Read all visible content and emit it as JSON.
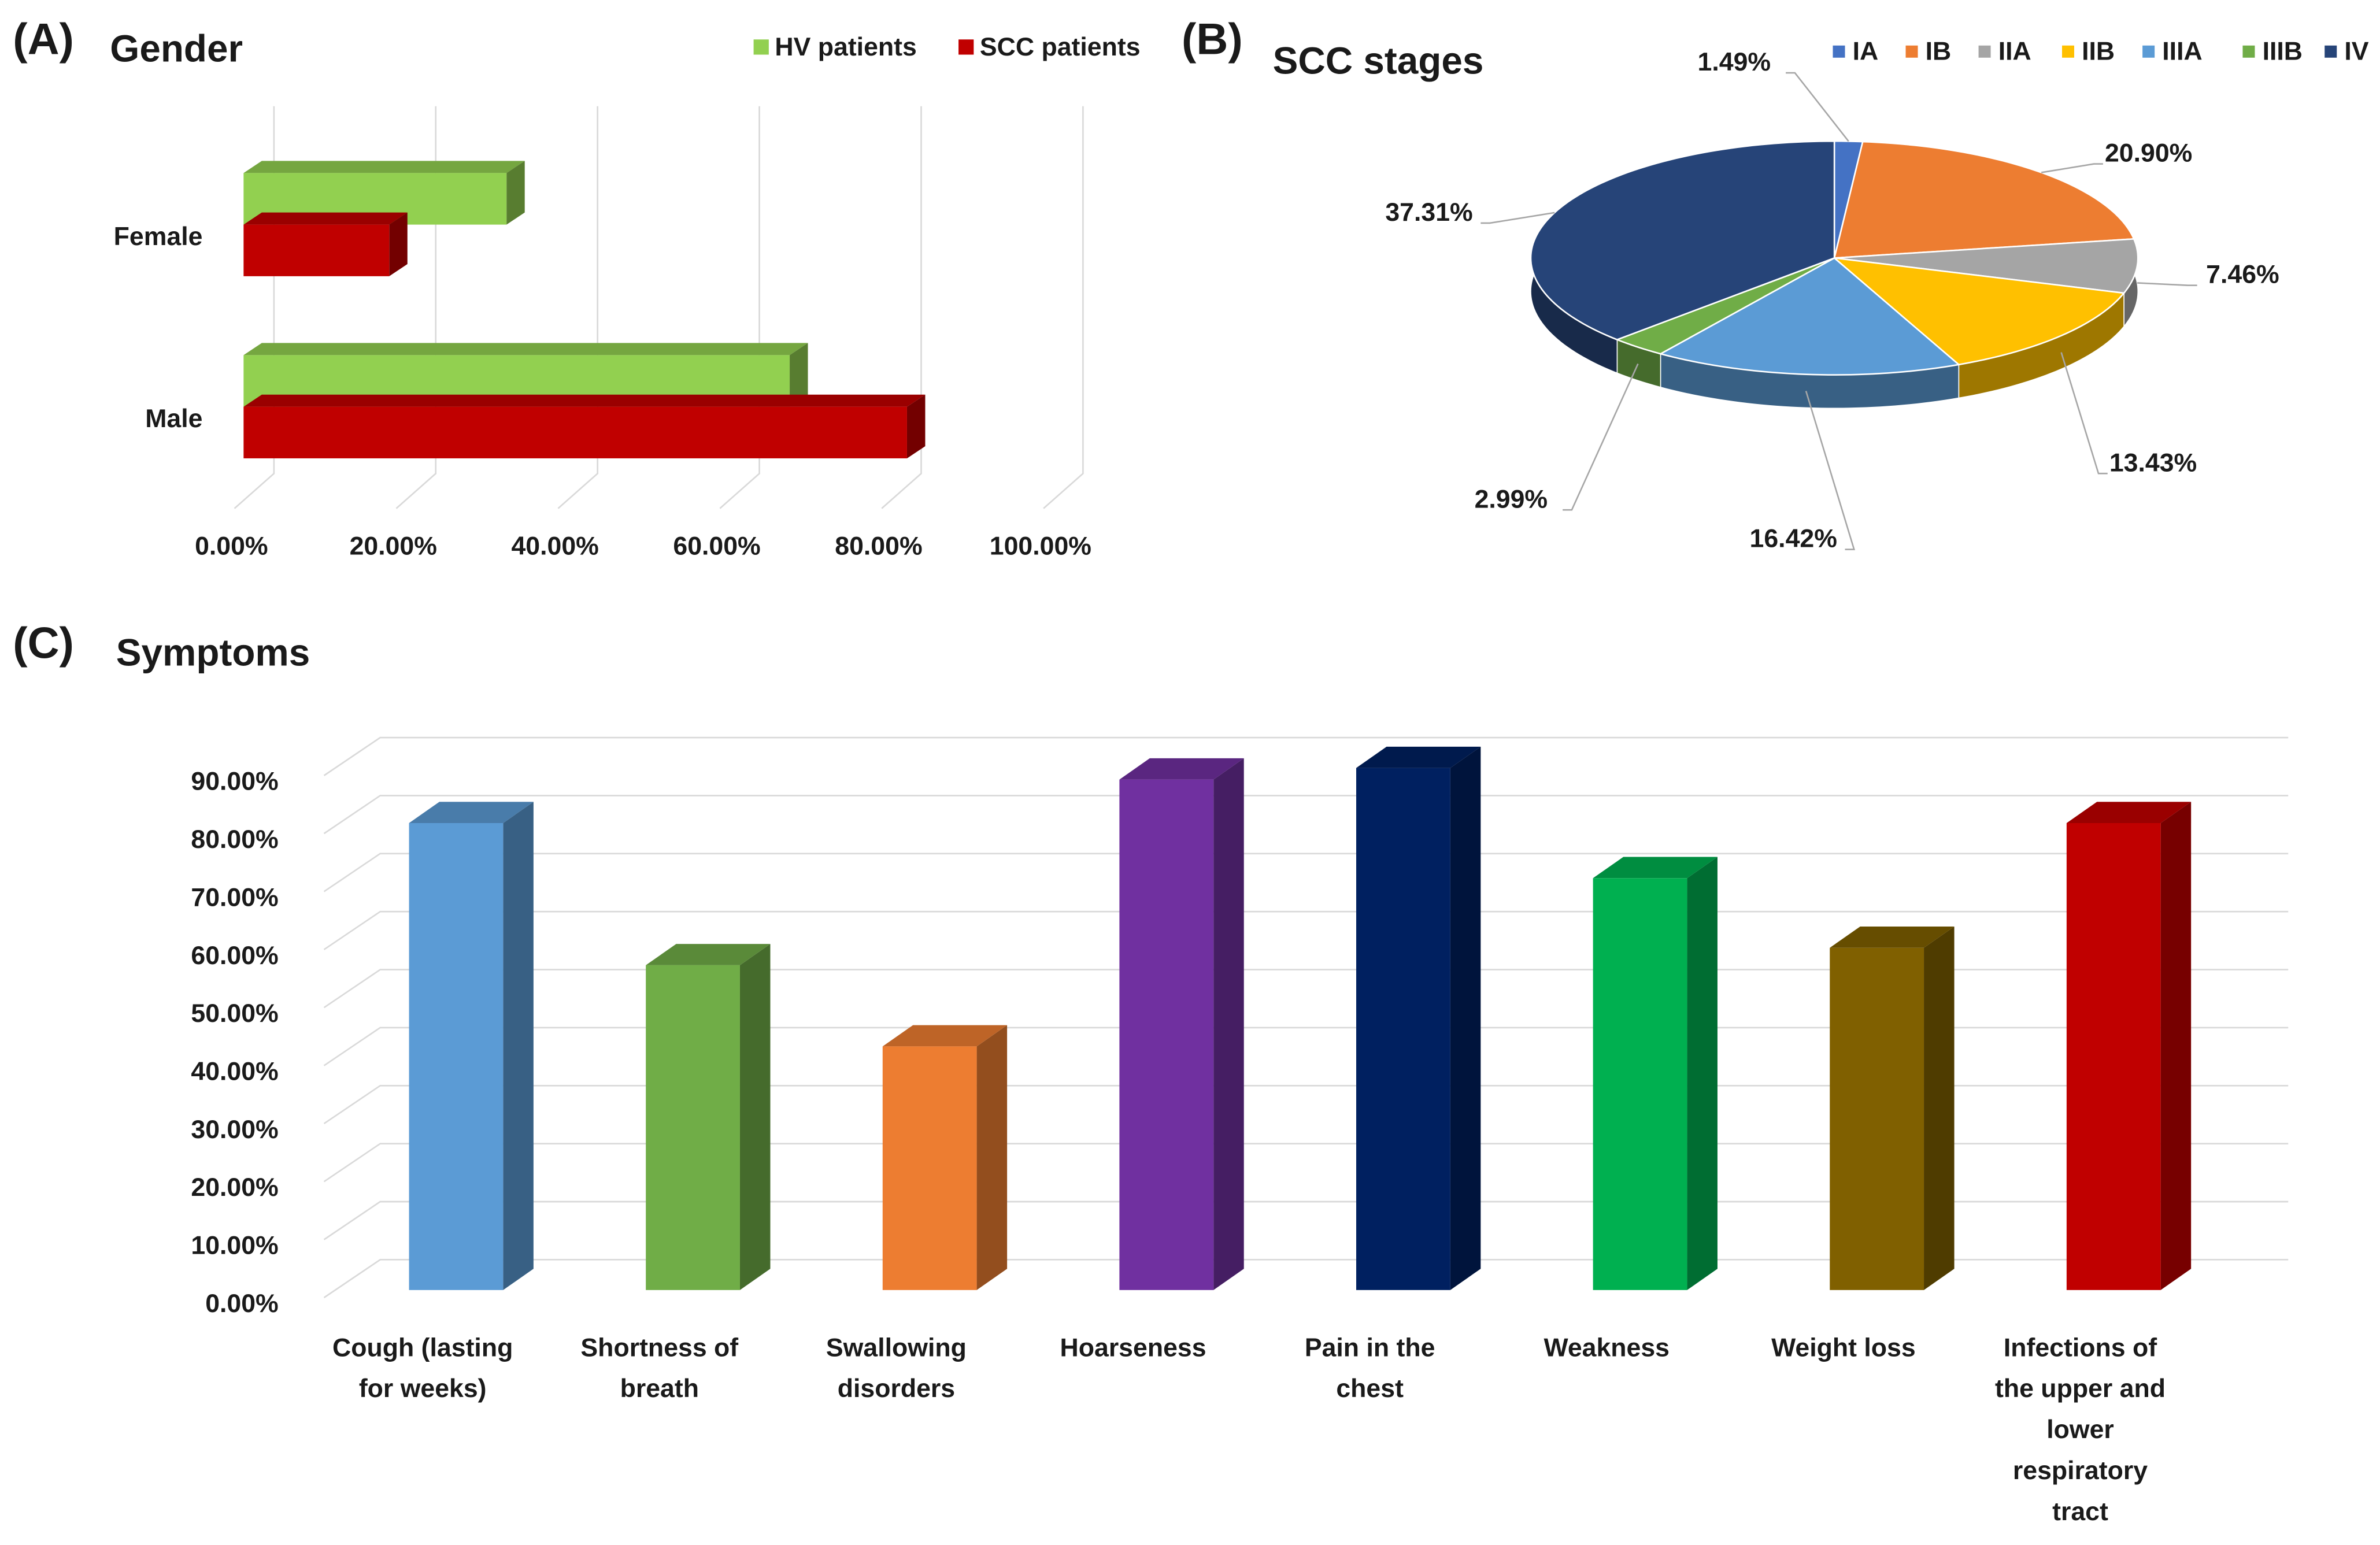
{
  "chart_data": [
    {
      "type": "hbar",
      "panel": "(A)",
      "title": "Gender",
      "categories": [
        "Female",
        "Male"
      ],
      "series": [
        {
          "name": "HV patients",
          "color": "#92d050",
          "values": [
            32.5,
            67.5
          ]
        },
        {
          "name": "SCC patients",
          "color": "#c00000",
          "values": [
            18,
            82
          ]
        }
      ],
      "xlim": [
        0,
        100
      ],
      "xticks": [
        {
          "value": 0,
          "label": "0.00%"
        },
        {
          "value": 20,
          "label": "20.00%"
        },
        {
          "value": 40,
          "label": "40.00%"
        },
        {
          "value": 60,
          "label": "60.00%"
        },
        {
          "value": 80,
          "label": "80.00%"
        },
        {
          "value": 100,
          "label": "100.00%"
        }
      ],
      "grid": true,
      "legend": "top-right"
    },
    {
      "type": "pie",
      "panel": "(B)",
      "title": "SCC stages",
      "categories": [
        "IA",
        "IB",
        "IIA",
        "IIB",
        "IIIA",
        "IIIB",
        "IV"
      ],
      "values": [
        1.49,
        20.9,
        7.46,
        13.43,
        16.42,
        2.99,
        37.31
      ],
      "value_labels": [
        "1.49%",
        "20.90%",
        "7.46%",
        "13.43%",
        "16.42%",
        "2.99%",
        "37.31%"
      ],
      "colors": [
        "#4472c4",
        "#ed7d31",
        "#a5a5a5",
        "#ffc000",
        "#5b9bd5",
        "#70ad47",
        "#264478"
      ],
      "legend": "top"
    },
    {
      "type": "bar",
      "panel": "(C)",
      "title": "Symptoms",
      "categories": [
        "Cough (lasting for weeks)",
        "Shortness of breath",
        "Swallowing disorders",
        "Hoarseness",
        "Pain in the chest",
        "Weakness",
        "Weight loss",
        "Infections of the upper and lower respiratory tract"
      ],
      "values": [
        80.5,
        56,
        42,
        88,
        90,
        71,
        59,
        80.5
      ],
      "colors": [
        "#5b9bd5",
        "#70ad47",
        "#ed7d31",
        "#7030a0",
        "#002060",
        "#00b050",
        "#806000",
        "#c00000"
      ],
      "ylim": [
        0,
        90
      ],
      "yticks": [
        {
          "value": 0,
          "label": "0.00%"
        },
        {
          "value": 10,
          "label": "10.00%"
        },
        {
          "value": 20,
          "label": "20.00%"
        },
        {
          "value": 30,
          "label": "30.00%"
        },
        {
          "value": 40,
          "label": "40.00%"
        },
        {
          "value": 50,
          "label": "50.00%"
        },
        {
          "value": 60,
          "label": "60.00%"
        },
        {
          "value": 70,
          "label": "70.00%"
        },
        {
          "value": 80,
          "label": "80.00%"
        },
        {
          "value": 90,
          "label": "90.00%"
        }
      ],
      "grid": true
    }
  ]
}
